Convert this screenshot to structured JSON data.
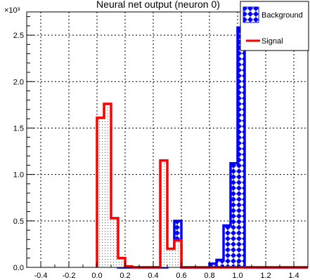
{
  "chart_data": {
    "type": "bar",
    "title": "Neural net output (neuron 0)",
    "y_exponent_label": "×10³",
    "xlim": [
      -0.5,
      1.5
    ],
    "ylim": [
      0,
      2750
    ],
    "grid": true,
    "x_ticks": [
      {
        "v": -0.4,
        "t": "-0.4"
      },
      {
        "v": -0.2,
        "t": "-0.2"
      },
      {
        "v": 0.0,
        "t": "0.0"
      },
      {
        "v": 0.2,
        "t": "0.2"
      },
      {
        "v": 0.4,
        "t": "0.4"
      },
      {
        "v": 0.6,
        "t": "0.6"
      },
      {
        "v": 0.8,
        "t": "0.8"
      },
      {
        "v": 1.0,
        "t": "1.0"
      },
      {
        "v": 1.2,
        "t": "1.2"
      },
      {
        "v": 1.4,
        "t": "1.4"
      }
    ],
    "y_ticks": [
      {
        "v": 0,
        "t": "0.0"
      },
      {
        "v": 500,
        "t": "0.5"
      },
      {
        "v": 1000,
        "t": "1.0"
      },
      {
        "v": 1500,
        "t": "1.5"
      },
      {
        "v": 2000,
        "t": "2.0"
      },
      {
        "v": 2500,
        "t": "2.5"
      }
    ],
    "bin_edges": [
      -0.5,
      -0.45,
      -0.4,
      -0.35,
      -0.3,
      -0.25,
      -0.2,
      -0.15,
      -0.1,
      -0.05,
      0.0,
      0.05,
      0.1,
      0.15,
      0.2,
      0.25,
      0.3,
      0.35,
      0.4,
      0.45,
      0.5,
      0.55,
      0.6,
      0.65,
      0.7,
      0.75,
      0.8,
      0.85,
      0.9,
      0.95,
      1.0,
      1.05,
      1.1,
      1.15,
      1.2,
      1.25,
      1.3,
      1.35,
      1.4,
      1.45,
      1.5
    ],
    "legend_position": "top-right",
    "series": [
      {
        "name": "Background",
        "color": "#0000ff",
        "fill": "diamond-hatch",
        "values": [
          0,
          0,
          0,
          0,
          0,
          0,
          0,
          0,
          0,
          0,
          30,
          30,
          10,
          0,
          0,
          0,
          0,
          0,
          0,
          0,
          150,
          500,
          0,
          0,
          0,
          0,
          40,
          80,
          450,
          1120,
          2580,
          0,
          0,
          0,
          0,
          0,
          0,
          0,
          0,
          0
        ]
      },
      {
        "name": "Signal",
        "color": "#ff0000",
        "fill": "dots",
        "values": [
          0,
          0,
          0,
          0,
          0,
          0,
          0,
          0,
          0,
          0,
          1610,
          1760,
          530,
          100,
          10,
          0,
          0,
          0,
          0,
          1150,
          200,
          290,
          0,
          0,
          0,
          0,
          0,
          0,
          0,
          0,
          0,
          0,
          0,
          0,
          0,
          0,
          0,
          0,
          0,
          0
        ]
      }
    ]
  }
}
